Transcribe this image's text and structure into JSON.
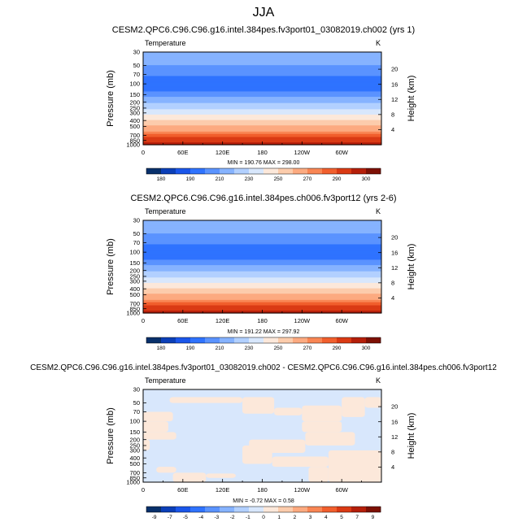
{
  "page": {
    "title": "JJA"
  },
  "chart_data": [
    {
      "type": "heatmap",
      "title": "CESM2.QPC6.C96.C96.g16.intel.384pes.fv3port01_03082019.ch002 (yrs 1)",
      "left_label": "Temperature",
      "right_label": "K",
      "ylabel": "Pressure (mb)",
      "ylabel_right": "Height (km)",
      "pressure_ticks": [
        30,
        50,
        70,
        100,
        150,
        200,
        250,
        300,
        400,
        500,
        700,
        850,
        1000
      ],
      "height_ticks": [
        20,
        16,
        12,
        8,
        4
      ],
      "xticks": [
        "0",
        "60E",
        "120E",
        "180",
        "120W",
        "60W"
      ],
      "stats": "MIN = 190.76   MAX = 298.00",
      "colorbar_ticks": [
        "180",
        "190",
        "210",
        "230",
        "250",
        "270",
        "290",
        "300"
      ],
      "colorbar_colors": [
        "#08306b",
        "#0b3fb8",
        "#1a56ea",
        "#2f73ff",
        "#5a93ff",
        "#86b3ff",
        "#b2d0ff",
        "#d8e7fc",
        "#fce8da",
        "#fcccac",
        "#fcaa80",
        "#f98654",
        "#f15f2d",
        "#da3a14",
        "#b51f0a",
        "#7d1004"
      ],
      "profile": [
        {
          "p": 30,
          "v": 218
        },
        {
          "p": 50,
          "v": 210
        },
        {
          "p": 70,
          "v": 201
        },
        {
          "p": 100,
          "v": 193
        },
        {
          "p": 130,
          "v": 198
        },
        {
          "p": 150,
          "v": 207
        },
        {
          "p": 200,
          "v": 219
        },
        {
          "p": 250,
          "v": 228
        },
        {
          "p": 300,
          "v": 236
        },
        {
          "p": 400,
          "v": 251
        },
        {
          "p": 500,
          "v": 262
        },
        {
          "p": 600,
          "v": 270
        },
        {
          "p": 700,
          "v": 277
        },
        {
          "p": 850,
          "v": 286
        },
        {
          "p": 1000,
          "v": 296
        }
      ]
    },
    {
      "type": "heatmap",
      "title": "CESM2.QPC6.C96.C96.g16.intel.384pes.ch006.fv3port12 (yrs 2-6)",
      "left_label": "Temperature",
      "right_label": "K",
      "ylabel": "Pressure (mb)",
      "ylabel_right": "Height (km)",
      "pressure_ticks": [
        30,
        50,
        70,
        100,
        150,
        200,
        250,
        300,
        400,
        500,
        700,
        850,
        1000
      ],
      "height_ticks": [
        20,
        16,
        12,
        8,
        4
      ],
      "xticks": [
        "0",
        "60E",
        "120E",
        "180",
        "120W",
        "60W"
      ],
      "stats": "MIN = 191.22   MAX = 297.92",
      "colorbar_ticks": [
        "180",
        "190",
        "210",
        "230",
        "250",
        "270",
        "290",
        "300"
      ],
      "colorbar_colors": [
        "#08306b",
        "#0b3fb8",
        "#1a56ea",
        "#2f73ff",
        "#5a93ff",
        "#86b3ff",
        "#b2d0ff",
        "#d8e7fc",
        "#fce8da",
        "#fcccac",
        "#fcaa80",
        "#f98654",
        "#f15f2d",
        "#da3a14",
        "#b51f0a",
        "#7d1004"
      ],
      "profile": [
        {
          "p": 30,
          "v": 218
        },
        {
          "p": 50,
          "v": 210
        },
        {
          "p": 70,
          "v": 201
        },
        {
          "p": 100,
          "v": 193
        },
        {
          "p": 130,
          "v": 198
        },
        {
          "p": 150,
          "v": 207
        },
        {
          "p": 200,
          "v": 219
        },
        {
          "p": 250,
          "v": 228
        },
        {
          "p": 300,
          "v": 236
        },
        {
          "p": 400,
          "v": 251
        },
        {
          "p": 500,
          "v": 262
        },
        {
          "p": 600,
          "v": 270
        },
        {
          "p": 700,
          "v": 277
        },
        {
          "p": 850,
          "v": 286
        },
        {
          "p": 1000,
          "v": 296
        }
      ]
    },
    {
      "type": "heatmap",
      "title": "CESM2.QPC6.C96.C96.g16.intel.384pes.fv3port01_03082019.ch002 - CESM2.QPC6.C96.C96.g16.intel.384pes.ch006.fv3port12",
      "left_label": "Temperature",
      "right_label": "K",
      "ylabel": "Pressure (mb)",
      "ylabel_right": "Height (km)",
      "pressure_ticks": [
        30,
        50,
        70,
        100,
        150,
        200,
        250,
        300,
        400,
        500,
        700,
        850,
        1000
      ],
      "height_ticks": [
        20,
        16,
        12,
        8,
        4
      ],
      "xticks": [
        "0",
        "60E",
        "120E",
        "180",
        "120W",
        "60W"
      ],
      "stats": "MIN = -0.72   MAX = 0.58",
      "colorbar_ticks": [
        "-9",
        "-7",
        "-5",
        "-4",
        "-3",
        "-2",
        "-1",
        "0",
        "1",
        "2",
        "3",
        "4",
        "5",
        "7",
        "9"
      ],
      "colorbar_colors": [
        "#08306b",
        "#0b3fb8",
        "#1a56ea",
        "#2f73ff",
        "#5a93ff",
        "#86b3ff",
        "#b2d0ff",
        "#d8e7fc",
        "#fce8da",
        "#fcccac",
        "#fcaa80",
        "#f98654",
        "#f15f2d",
        "#da3a14",
        "#b51f0a",
        "#7d1004"
      ],
      "base_color": "#d8e7fc",
      "patch_color": "#fce8da",
      "positive_regions": [
        {
          "lon": [
            0,
            45
          ],
          "p": [
            70,
            100
          ]
        },
        {
          "lon": [
            0,
            38
          ],
          "p": [
            100,
            150
          ]
        },
        {
          "lon": [
            0,
            50
          ],
          "p": [
            150,
            200
          ]
        },
        {
          "lon": [
            0,
            10
          ],
          "p": [
            200,
            300
          ]
        },
        {
          "lon": [
            40,
            150
          ],
          "p": [
            40,
            50
          ]
        },
        {
          "lon": [
            150,
            198
          ],
          "p": [
            40,
            75
          ]
        },
        {
          "lon": [
            198,
            240
          ],
          "p": [
            60,
            80
          ]
        },
        {
          "lon": [
            240,
            300
          ],
          "p": [
            55,
            100
          ]
        },
        {
          "lon": [
            300,
            335
          ],
          "p": [
            40,
            85
          ]
        },
        {
          "lon": [
            335,
            360
          ],
          "p": [
            40,
            60
          ]
        },
        {
          "lon": [
            240,
            300
          ],
          "p": [
            100,
            150
          ]
        },
        {
          "lon": [
            245,
            320
          ],
          "p": [
            150,
            250
          ]
        },
        {
          "lon": [
            160,
            245
          ],
          "p": [
            200,
            330
          ]
        },
        {
          "lon": [
            150,
            195
          ],
          "p": [
            250,
            500
          ]
        },
        {
          "lon": [
            195,
            280
          ],
          "p": [
            380,
            560
          ]
        },
        {
          "lon": [
            280,
            360
          ],
          "p": [
            300,
            1000
          ]
        },
        {
          "lon": [
            20,
            50
          ],
          "p": [
            560,
            700
          ]
        },
        {
          "lon": [
            45,
            95
          ],
          "p": [
            700,
            1000
          ]
        },
        {
          "lon": [
            95,
            140
          ],
          "p": [
            720,
            850
          ]
        },
        {
          "lon": [
            250,
            280
          ],
          "p": [
            560,
            1000
          ]
        }
      ]
    }
  ]
}
